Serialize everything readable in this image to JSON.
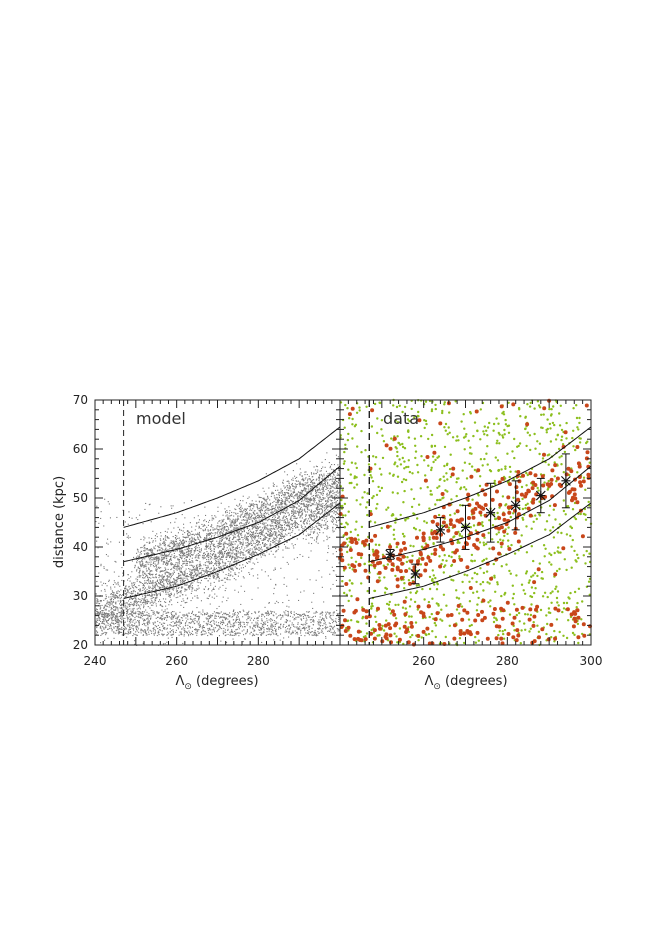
{
  "chart_data": [
    {
      "panel": "left",
      "type": "scatter",
      "label": "model",
      "xlabel_main": "Λ",
      "xlabel_sub": "⊙",
      "xlabel_rest": " (degrees)",
      "ylabel": "distance (kpc)",
      "xlim": [
        240,
        300
      ],
      "ylim": [
        20,
        70
      ],
      "x_ticks": [
        240,
        260,
        280
      ],
      "y_ticks": [
        20,
        30,
        40,
        50,
        60,
        70
      ],
      "grid": false,
      "reference_line_x": 247,
      "curves": [
        {
          "x": [
            247,
            260,
            270,
            280,
            290,
            300
          ],
          "y": [
            44.0,
            47.0,
            50.0,
            53.5,
            58.0,
            64.5
          ]
        },
        {
          "x": [
            247,
            260,
            270,
            280,
            290,
            300
          ],
          "y": [
            37.0,
            39.5,
            42.0,
            45.0,
            49.5,
            56.5
          ]
        },
        {
          "x": [
            247,
            260,
            270,
            280,
            290,
            300
          ],
          "y": [
            29.5,
            32.0,
            35.0,
            38.5,
            42.5,
            49.0
          ]
        }
      ],
      "stream_band": {
        "centre": {
          "x": [
            240,
            250,
            260,
            270,
            280,
            290,
            300
          ],
          "y": [
            26.5,
            30.0,
            33.5,
            36.5,
            41.5,
            46.0,
            48.5
          ]
        },
        "upper": {
          "x": [
            250,
            260,
            270,
            280,
            290,
            300
          ],
          "y": [
            37.0,
            39.5,
            42.5,
            47.0,
            51.5,
            53.5
          ]
        },
        "background_y": [
          22,
          27
        ],
        "color": "#7a7a7a"
      }
    },
    {
      "panel": "right",
      "type": "scatter",
      "label": "data",
      "xlabel_main": "Λ",
      "xlabel_sub": "⊙",
      "xlabel_rest": " (degrees)",
      "xlim": [
        240,
        300
      ],
      "ylim": [
        20,
        70
      ],
      "x_ticks": [
        260,
        280,
        300
      ],
      "grid": false,
      "reference_line_x": 247,
      "curves": [
        {
          "x": [
            247,
            260,
            270,
            280,
            290,
            300
          ],
          "y": [
            44.0,
            47.0,
            50.0,
            53.5,
            58.0,
            64.5
          ]
        },
        {
          "x": [
            247,
            260,
            270,
            280,
            290,
            300
          ],
          "y": [
            37.0,
            39.5,
            42.0,
            45.0,
            49.5,
            56.5
          ]
        },
        {
          "x": [
            247,
            260,
            270,
            280,
            290,
            300
          ],
          "y": [
            29.5,
            32.0,
            35.0,
            38.5,
            42.5,
            49.0
          ]
        }
      ],
      "measurements": [
        {
          "x": 252,
          "y": 38.5,
          "err": 1.0
        },
        {
          "x": 258,
          "y": 34.5,
          "err": 2.0
        },
        {
          "x": 264,
          "y": 43.5,
          "err": 2.5
        },
        {
          "x": 270,
          "y": 44.0,
          "err": 4.5
        },
        {
          "x": 276,
          "y": 47.0,
          "err": 6.0
        },
        {
          "x": 282,
          "y": 48.5,
          "err": 5.0
        },
        {
          "x": 288,
          "y": 50.5,
          "err": 3.5
        },
        {
          "x": 294,
          "y": 53.5,
          "err": 5.5
        }
      ],
      "point_colors": {
        "background": "#8cbf1e",
        "stream": "#c8461a"
      }
    }
  ]
}
